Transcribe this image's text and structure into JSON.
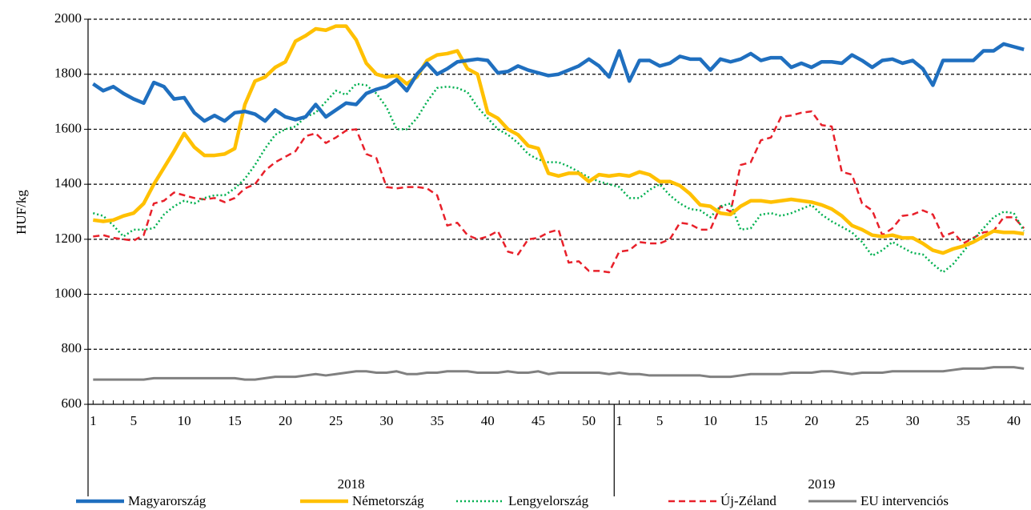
{
  "chart_data": {
    "type": "line",
    "y_label": "HUF/kg",
    "ylim": [
      600,
      2000
    ],
    "yticks": [
      600,
      800,
      1000,
      1200,
      1400,
      1600,
      1800,
      2000
    ],
    "grid": true,
    "legend": "bottom",
    "groups": [
      {
        "label": "2018",
        "size": 52
      },
      {
        "label": "2019",
        "size": 41
      }
    ],
    "categories": [
      "1",
      null,
      null,
      null,
      "5",
      null,
      null,
      null,
      null,
      "10",
      null,
      null,
      null,
      null,
      "15",
      null,
      null,
      null,
      null,
      "20",
      null,
      null,
      null,
      null,
      "25",
      null,
      null,
      null,
      null,
      "30",
      null,
      null,
      null,
      null,
      "35",
      null,
      null,
      null,
      null,
      "40",
      null,
      null,
      null,
      null,
      "45",
      null,
      null,
      null,
      null,
      "50",
      null,
      null,
      "1",
      null,
      null,
      null,
      "5",
      null,
      null,
      null,
      null,
      "10",
      null,
      null,
      null,
      null,
      "15",
      null,
      null,
      null,
      null,
      "20",
      null,
      null,
      null,
      null,
      "25",
      null,
      null,
      null,
      null,
      "30",
      null,
      null,
      null,
      null,
      "35",
      null,
      null,
      null,
      null,
      "40",
      null
    ],
    "series": [
      {
        "name": "Magyarország",
        "color": "#1f6fbf",
        "dash": "solid",
        "width": 4.5,
        "values": [
          1765,
          1740,
          1755,
          1730,
          1710,
          1695,
          1770,
          1755,
          1710,
          1715,
          1660,
          1630,
          1650,
          1630,
          1660,
          1665,
          1655,
          1630,
          1670,
          1645,
          1635,
          1645,
          1690,
          1645,
          1670,
          1695,
          1690,
          1730,
          1745,
          1755,
          1780,
          1740,
          1800,
          1840,
          1800,
          1820,
          1845,
          1850,
          1855,
          1850,
          1805,
          1810,
          1830,
          1815,
          1805,
          1795,
          1800,
          1815,
          1830,
          1855,
          1830,
          1790,
          1885,
          1775,
          1850,
          1850,
          1830,
          1840,
          1865,
          1855,
          1855,
          1815,
          1855,
          1845,
          1855,
          1875,
          1850,
          1860,
          1860,
          1825,
          1840,
          1825,
          1845,
          1845,
          1840,
          1870,
          1850,
          1825,
          1850,
          1855,
          1840,
          1850,
          1820,
          1760,
          1850,
          1850,
          1850,
          1850,
          1885,
          1885,
          1910,
          1900,
          1890
        ]
      },
      {
        "name": "Németország",
        "color": "#ffc000",
        "dash": "solid",
        "width": 4.5,
        "values": [
          1270,
          1265,
          1270,
          1285,
          1295,
          1330,
          1400,
          1460,
          1520,
          1585,
          1535,
          1505,
          1505,
          1510,
          1530,
          1690,
          1775,
          1790,
          1825,
          1845,
          1920,
          1940,
          1965,
          1960,
          1975,
          1975,
          1925,
          1840,
          1800,
          1790,
          1795,
          1765,
          1790,
          1850,
          1870,
          1875,
          1885,
          1820,
          1800,
          1660,
          1640,
          1600,
          1580,
          1540,
          1530,
          1440,
          1430,
          1440,
          1440,
          1410,
          1435,
          1430,
          1435,
          1430,
          1445,
          1435,
          1410,
          1410,
          1395,
          1365,
          1325,
          1320,
          1295,
          1290,
          1320,
          1340,
          1340,
          1335,
          1340,
          1345,
          1340,
          1335,
          1325,
          1310,
          1285,
          1250,
          1235,
          1215,
          1210,
          1215,
          1205,
          1205,
          1185,
          1160,
          1150,
          1165,
          1175,
          1190,
          1210,
          1230,
          1225,
          1225,
          1220
        ]
      },
      {
        "name": "Lengyelország",
        "color": "#00b050",
        "dash": "dotted",
        "width": 2.5,
        "values": [
          1295,
          1285,
          1250,
          1210,
          1235,
          1235,
          1240,
          1290,
          1320,
          1340,
          1330,
          1350,
          1360,
          1360,
          1385,
          1420,
          1470,
          1530,
          1580,
          1600,
          1610,
          1645,
          1660,
          1700,
          1740,
          1725,
          1765,
          1760,
          1730,
          1680,
          1600,
          1600,
          1640,
          1700,
          1750,
          1755,
          1750,
          1735,
          1680,
          1640,
          1600,
          1580,
          1550,
          1510,
          1490,
          1480,
          1480,
          1465,
          1445,
          1425,
          1410,
          1400,
          1390,
          1350,
          1350,
          1380,
          1400,
          1360,
          1330,
          1310,
          1305,
          1280,
          1320,
          1330,
          1235,
          1240,
          1290,
          1295,
          1285,
          1295,
          1310,
          1325,
          1290,
          1265,
          1245,
          1225,
          1190,
          1140,
          1160,
          1190,
          1170,
          1150,
          1145,
          1110,
          1080,
          1110,
          1155,
          1200,
          1240,
          1280,
          1300,
          1295,
          1230
        ]
      },
      {
        "name": "Új-Zéland",
        "color": "#e8202a",
        "dash": "dashed",
        "width": 2.5,
        "values": [
          1210,
          1215,
          1205,
          1200,
          1195,
          1215,
          1330,
          1340,
          1370,
          1360,
          1350,
          1345,
          1350,
          1335,
          1350,
          1385,
          1400,
          1450,
          1480,
          1500,
          1520,
          1575,
          1585,
          1550,
          1570,
          1595,
          1600,
          1510,
          1495,
          1390,
          1385,
          1390,
          1390,
          1385,
          1360,
          1250,
          1260,
          1215,
          1200,
          1210,
          1230,
          1155,
          1145,
          1200,
          1205,
          1225,
          1235,
          1115,
          1120,
          1085,
          1085,
          1080,
          1155,
          1160,
          1190,
          1185,
          1185,
          1200,
          1260,
          1255,
          1235,
          1235,
          1320,
          1300,
          1470,
          1480,
          1560,
          1570,
          1645,
          1650,
          1660,
          1665,
          1615,
          1610,
          1445,
          1435,
          1330,
          1305,
          1215,
          1240,
          1285,
          1290,
          1305,
          1290,
          1210,
          1225,
          1185,
          1205,
          1225,
          1230,
          1280,
          1280,
          1240
        ]
      },
      {
        "name": "EU intervenciós",
        "color": "#808080",
        "dash": "solid",
        "width": 3,
        "values": [
          690,
          690,
          690,
          690,
          690,
          690,
          695,
          695,
          695,
          695,
          695,
          695,
          695,
          695,
          695,
          690,
          690,
          695,
          700,
          700,
          700,
          705,
          710,
          705,
          710,
          715,
          720,
          720,
          715,
          715,
          720,
          710,
          710,
          715,
          715,
          720,
          720,
          720,
          715,
          715,
          715,
          720,
          715,
          715,
          720,
          710,
          715,
          715,
          715,
          715,
          715,
          710,
          715,
          710,
          710,
          705,
          705,
          705,
          705,
          705,
          705,
          700,
          700,
          700,
          705,
          710,
          710,
          710,
          710,
          715,
          715,
          715,
          720,
          720,
          715,
          710,
          715,
          715,
          715,
          720,
          720,
          720,
          720,
          720,
          720,
          725,
          730,
          730,
          730,
          735,
          735,
          735,
          730
        ]
      }
    ]
  }
}
